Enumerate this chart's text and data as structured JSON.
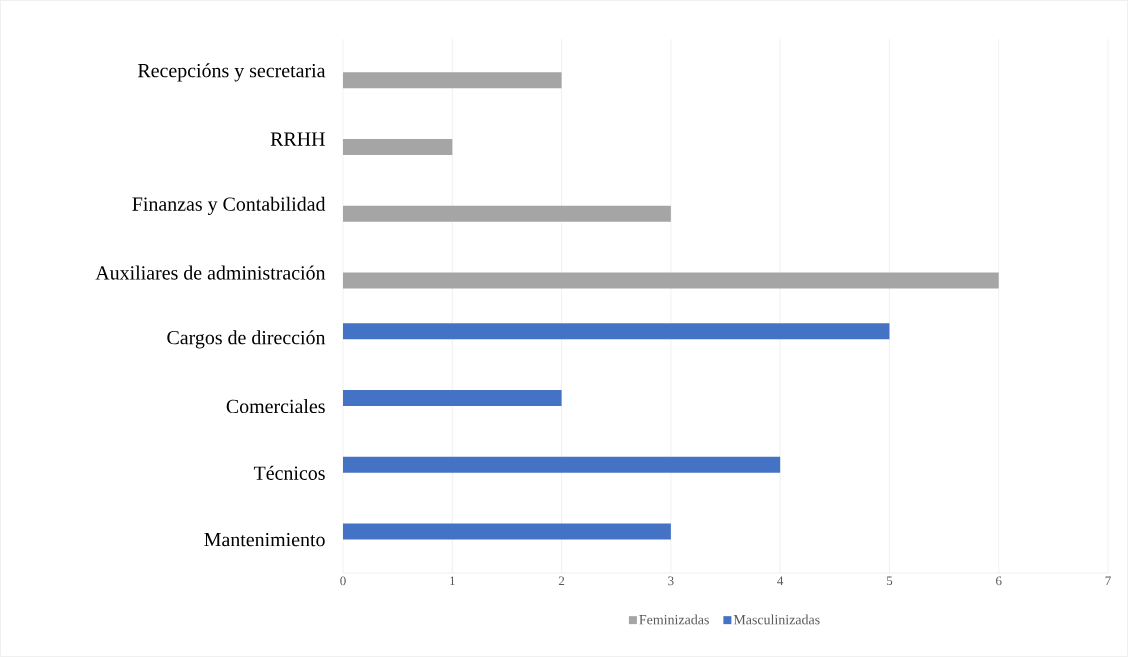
{
  "chart_data": {
    "type": "bar",
    "orientation": "horizontal",
    "categories": [
      "Recepcións y secretaria",
      "RRHH",
      "Finanzas y Contabilidad",
      "Auxiliares de administración",
      "Cargos de dirección",
      "Comerciales",
      "Técnicos",
      "Mantenimiento"
    ],
    "series": [
      {
        "name": "Feminizadas",
        "color": "#a5a5a5",
        "values": [
          2,
          1,
          3,
          6,
          null,
          null,
          null,
          null
        ]
      },
      {
        "name": "Masculinizadas",
        "color": "#4472c4",
        "values": [
          null,
          null,
          null,
          null,
          5,
          2,
          4,
          3
        ]
      }
    ],
    "xlim": [
      0,
      7
    ],
    "xticks": [
      0,
      1,
      2,
      3,
      4,
      5,
      6,
      7
    ],
    "grid": "x",
    "legend": "bottom"
  }
}
